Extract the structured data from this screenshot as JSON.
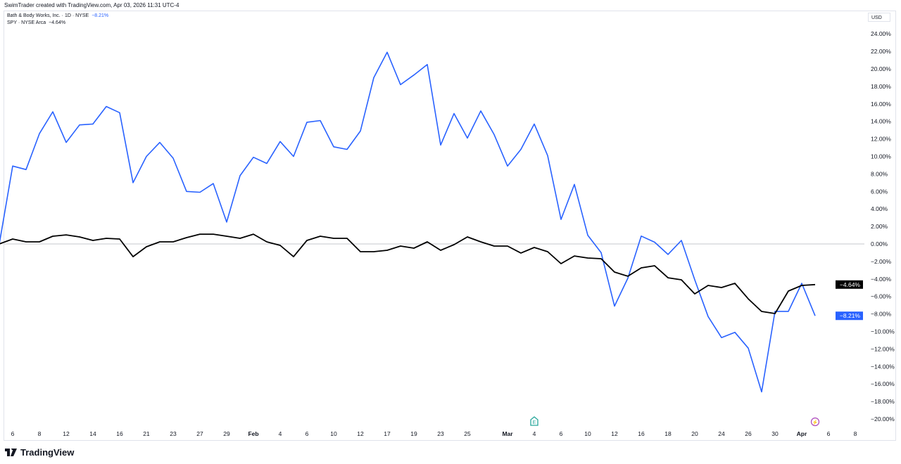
{
  "credit": "SwimTrader created with TradingView.com, Apr 03, 2026 11:31 UTC-4",
  "legend": {
    "main_symbol": "Bath & Body Works, Inc. · 1D · NYSE",
    "main_change": "−8.21%",
    "compare_symbol": "SPY · NYSE Arca",
    "compare_change": "−4.64%"
  },
  "currency": "USD",
  "brand": "TradingView",
  "colors": {
    "bbwi": "#2962ff",
    "spy": "#000000",
    "earnings_marker": "#26a69a",
    "dividend_marker": "#ab47bc"
  },
  "chart_data": {
    "type": "line",
    "ylabel": "",
    "xlabel": "",
    "y_unit": "%",
    "ylim": [
      -21,
      25
    ],
    "grid": false,
    "dates": [
      "2026-01-05",
      "2026-01-06",
      "2026-01-07",
      "2026-01-08",
      "2026-01-09",
      "2026-01-12",
      "2026-01-13",
      "2026-01-14",
      "2026-01-15",
      "2026-01-16",
      "2026-01-20",
      "2026-01-21",
      "2026-01-22",
      "2026-01-23",
      "2026-01-26",
      "2026-01-27",
      "2026-01-28",
      "2026-01-29",
      "2026-01-30",
      "2026-02-02",
      "2026-02-03",
      "2026-02-04",
      "2026-02-05",
      "2026-02-06",
      "2026-02-09",
      "2026-02-10",
      "2026-02-11",
      "2026-02-12",
      "2026-02-13",
      "2026-02-17",
      "2026-02-18",
      "2026-02-19",
      "2026-02-20",
      "2026-02-23",
      "2026-02-24",
      "2026-02-25",
      "2026-02-26",
      "2026-02-27",
      "2026-03-02",
      "2026-03-03",
      "2026-03-04",
      "2026-03-05",
      "2026-03-06",
      "2026-03-09",
      "2026-03-10",
      "2026-03-11",
      "2026-03-12",
      "2026-03-13",
      "2026-03-16",
      "2026-03-17",
      "2026-03-18",
      "2026-03-19",
      "2026-03-20",
      "2026-03-23",
      "2026-03-24",
      "2026-03-25",
      "2026-03-26",
      "2026-03-27",
      "2026-03-30",
      "2026-03-31",
      "2026-04-01",
      "2026-04-02"
    ],
    "series": [
      {
        "name": "Bath & Body Works, Inc. · 1D · NYSE",
        "color": "#2962ff",
        "last_label": "−8.21%",
        "values": [
          0,
          8.9,
          8.5,
          12.6,
          15.1,
          11.6,
          13.6,
          13.7,
          15.7,
          15.0,
          7.0,
          10.0,
          11.6,
          9.8,
          6.0,
          5.9,
          6.9,
          2.5,
          7.8,
          9.9,
          9.2,
          11.7,
          10.0,
          13.9,
          14.1,
          11.1,
          10.8,
          12.9,
          19.0,
          21.9,
          18.2,
          19.3,
          20.5,
          11.3,
          14.9,
          12.1,
          15.2,
          12.5,
          8.9,
          10.8,
          13.7,
          10.1,
          2.8,
          6.8,
          1.0,
          -1.0,
          -7.1,
          -3.9,
          0.9,
          0.2,
          -1.2,
          0.4,
          -4.1,
          -8.3,
          -10.7,
          -10.1,
          -11.9,
          -16.9,
          -7.7,
          -7.7,
          -4.5,
          -8.21
        ]
      },
      {
        "name": "SPY · NYSE Arca",
        "color": "#000000",
        "last_label": "−4.64%",
        "values": [
          0,
          0.56,
          0.24,
          0.24,
          0.88,
          1.04,
          0.8,
          0.4,
          0.64,
          0.56,
          -1.45,
          -0.32,
          0.24,
          0.24,
          0.72,
          1.12,
          1.12,
          0.88,
          0.64,
          1.12,
          0.24,
          -0.16,
          -1.45,
          0.4,
          0.88,
          0.64,
          0.64,
          -0.88,
          -0.88,
          -0.72,
          -0.24,
          -0.48,
          0.24,
          -0.72,
          -0.08,
          0.8,
          0.24,
          -0.24,
          -0.24,
          -1.04,
          -0.4,
          -0.88,
          -2.25,
          -1.37,
          -1.61,
          -1.69,
          -3.21,
          -3.69,
          -2.73,
          -2.49,
          -3.86,
          -4.1,
          -5.7,
          -4.74,
          -4.98,
          -4.5,
          -6.27,
          -7.71,
          -7.95,
          -5.38,
          -4.74,
          -4.64
        ]
      }
    ],
    "y_ticks": [
      "24.00%",
      "22.00%",
      "20.00%",
      "18.00%",
      "16.00%",
      "14.00%",
      "12.00%",
      "10.00%",
      "8.00%",
      "6.00%",
      "4.00%",
      "2.00%",
      "0.00%",
      "−2.00%",
      "−4.00%",
      "−6.00%",
      "−8.00%",
      "−10.00%",
      "−12.00%",
      "−14.00%",
      "−16.00%",
      "−18.00%",
      "−20.00%"
    ],
    "y_tick_values": [
      24,
      22,
      20,
      18,
      16,
      14,
      12,
      10,
      8,
      6,
      4,
      2,
      0,
      -2,
      -4,
      -6,
      -8,
      -10,
      -12,
      -14,
      -16,
      -18,
      -20
    ],
    "x_ticks": [
      {
        "label": "6",
        "date": "2026-01-06"
      },
      {
        "label": "8",
        "date": "2026-01-08"
      },
      {
        "label": "12",
        "date": "2026-01-12"
      },
      {
        "label": "14",
        "date": "2026-01-14"
      },
      {
        "label": "16",
        "date": "2026-01-16"
      },
      {
        "label": "21",
        "date": "2026-01-21"
      },
      {
        "label": "23",
        "date": "2026-01-23"
      },
      {
        "label": "27",
        "date": "2026-01-27"
      },
      {
        "label": "29",
        "date": "2026-01-29"
      },
      {
        "label": "Feb",
        "date": "2026-02-02",
        "bold": true
      },
      {
        "label": "4",
        "date": "2026-02-04"
      },
      {
        "label": "6",
        "date": "2026-02-06"
      },
      {
        "label": "10",
        "date": "2026-02-10"
      },
      {
        "label": "12",
        "date": "2026-02-12"
      },
      {
        "label": "17",
        "date": "2026-02-17"
      },
      {
        "label": "19",
        "date": "2026-02-19"
      },
      {
        "label": "23",
        "date": "2026-02-23"
      },
      {
        "label": "25",
        "date": "2026-02-25"
      },
      {
        "label": "Mar",
        "date": "2026-03-02",
        "bold": true
      },
      {
        "label": "4",
        "date": "2026-03-04"
      },
      {
        "label": "6",
        "date": "2026-03-06"
      },
      {
        "label": "10",
        "date": "2026-03-10"
      },
      {
        "label": "12",
        "date": "2026-03-12"
      },
      {
        "label": "16",
        "date": "2026-03-16"
      },
      {
        "label": "18",
        "date": "2026-03-18"
      },
      {
        "label": "20",
        "date": "2026-03-20"
      },
      {
        "label": "24",
        "date": "2026-03-24"
      },
      {
        "label": "26",
        "date": "2026-03-26"
      },
      {
        "label": "30",
        "date": "2026-03-30"
      },
      {
        "label": "Apr",
        "date": "2026-04-01",
        "bold": true
      },
      {
        "label": "6",
        "date": "2026-04-06"
      },
      {
        "label": "8",
        "date": "2026-04-08"
      }
    ],
    "events": [
      {
        "type": "earnings",
        "glyph": "E",
        "date": "2026-03-04"
      },
      {
        "type": "dividend",
        "glyph": "⚡",
        "date": "2026-04-02"
      }
    ]
  }
}
